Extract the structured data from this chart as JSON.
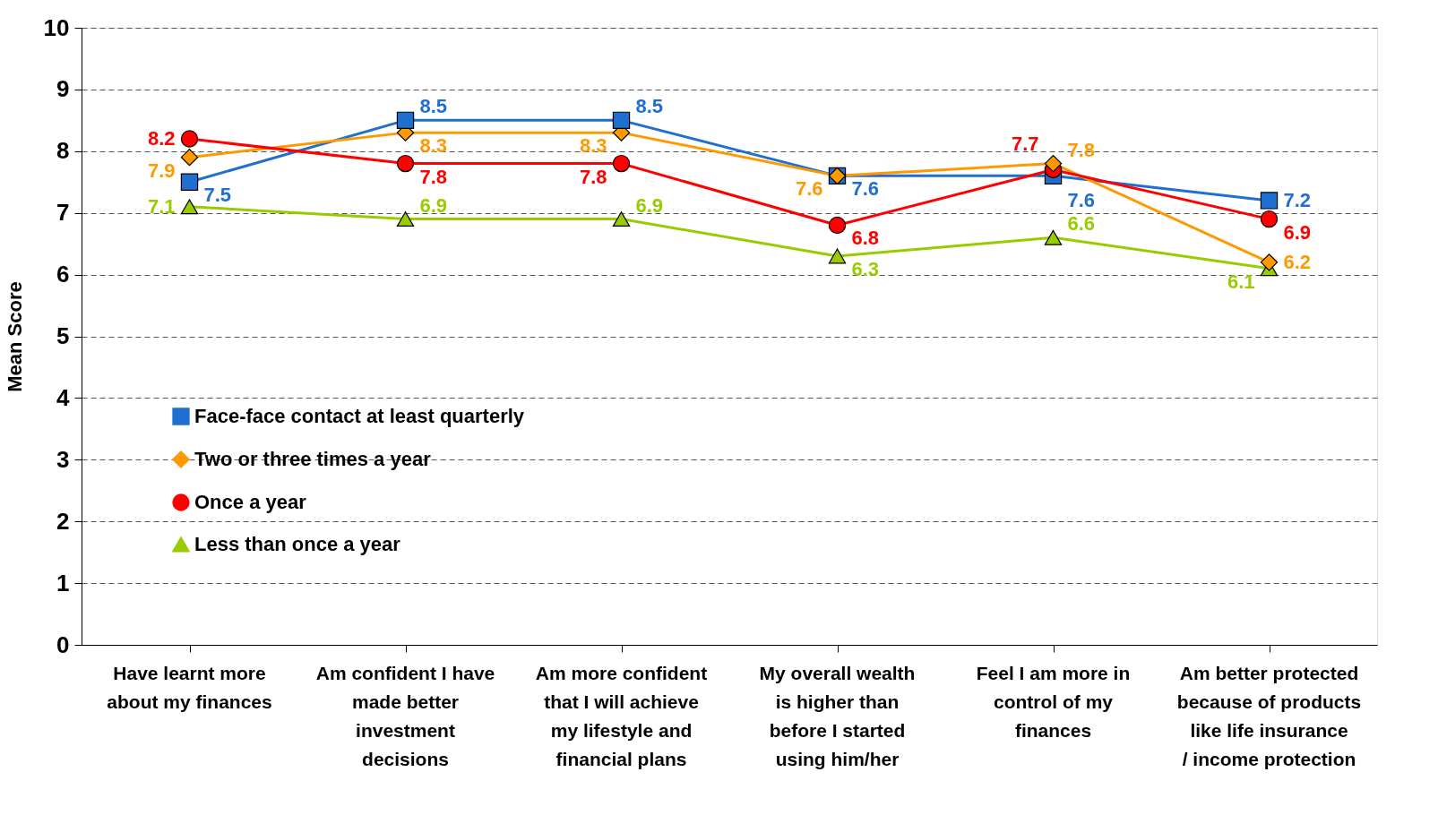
{
  "chart_data": {
    "type": "line",
    "ylabel": "Mean Score",
    "categories": [
      "Have learnt more about my finances",
      "Am confident I have made better investment decisions",
      "Am more confident that I will achieve my lifestyle and financial plans",
      "My overall wealth is higher than before I started using him/her",
      "Feel I am more in control of my finances",
      "Am better protected because of products like life insurance / income protection"
    ],
    "series": [
      {
        "name": "Face-face contact at least quarterly",
        "color": "#1f6fd0",
        "marker": "square",
        "values": [
          7.5,
          8.5,
          8.5,
          7.6,
          7.6,
          7.2
        ]
      },
      {
        "name": "Two or three times a year",
        "color": "#ff9900",
        "marker": "diamond",
        "values": [
          7.9,
          8.3,
          8.3,
          7.6,
          7.8,
          6.2
        ]
      },
      {
        "name": "Once a year",
        "color": "#ff0000",
        "marker": "circle",
        "values": [
          8.2,
          7.8,
          7.8,
          6.8,
          7.7,
          6.9
        ]
      },
      {
        "name": "Less than once a year",
        "color": "#99cc00",
        "marker": "triangle",
        "values": [
          7.1,
          6.9,
          6.9,
          6.3,
          6.6,
          6.1
        ]
      }
    ],
    "ylim": [
      0,
      10
    ],
    "yticks": [
      0,
      1,
      2,
      3,
      4,
      5,
      6,
      7,
      8,
      9,
      10
    ],
    "grid": "y",
    "legend": "bottom left",
    "data_labels": true,
    "line_style": "solid"
  }
}
